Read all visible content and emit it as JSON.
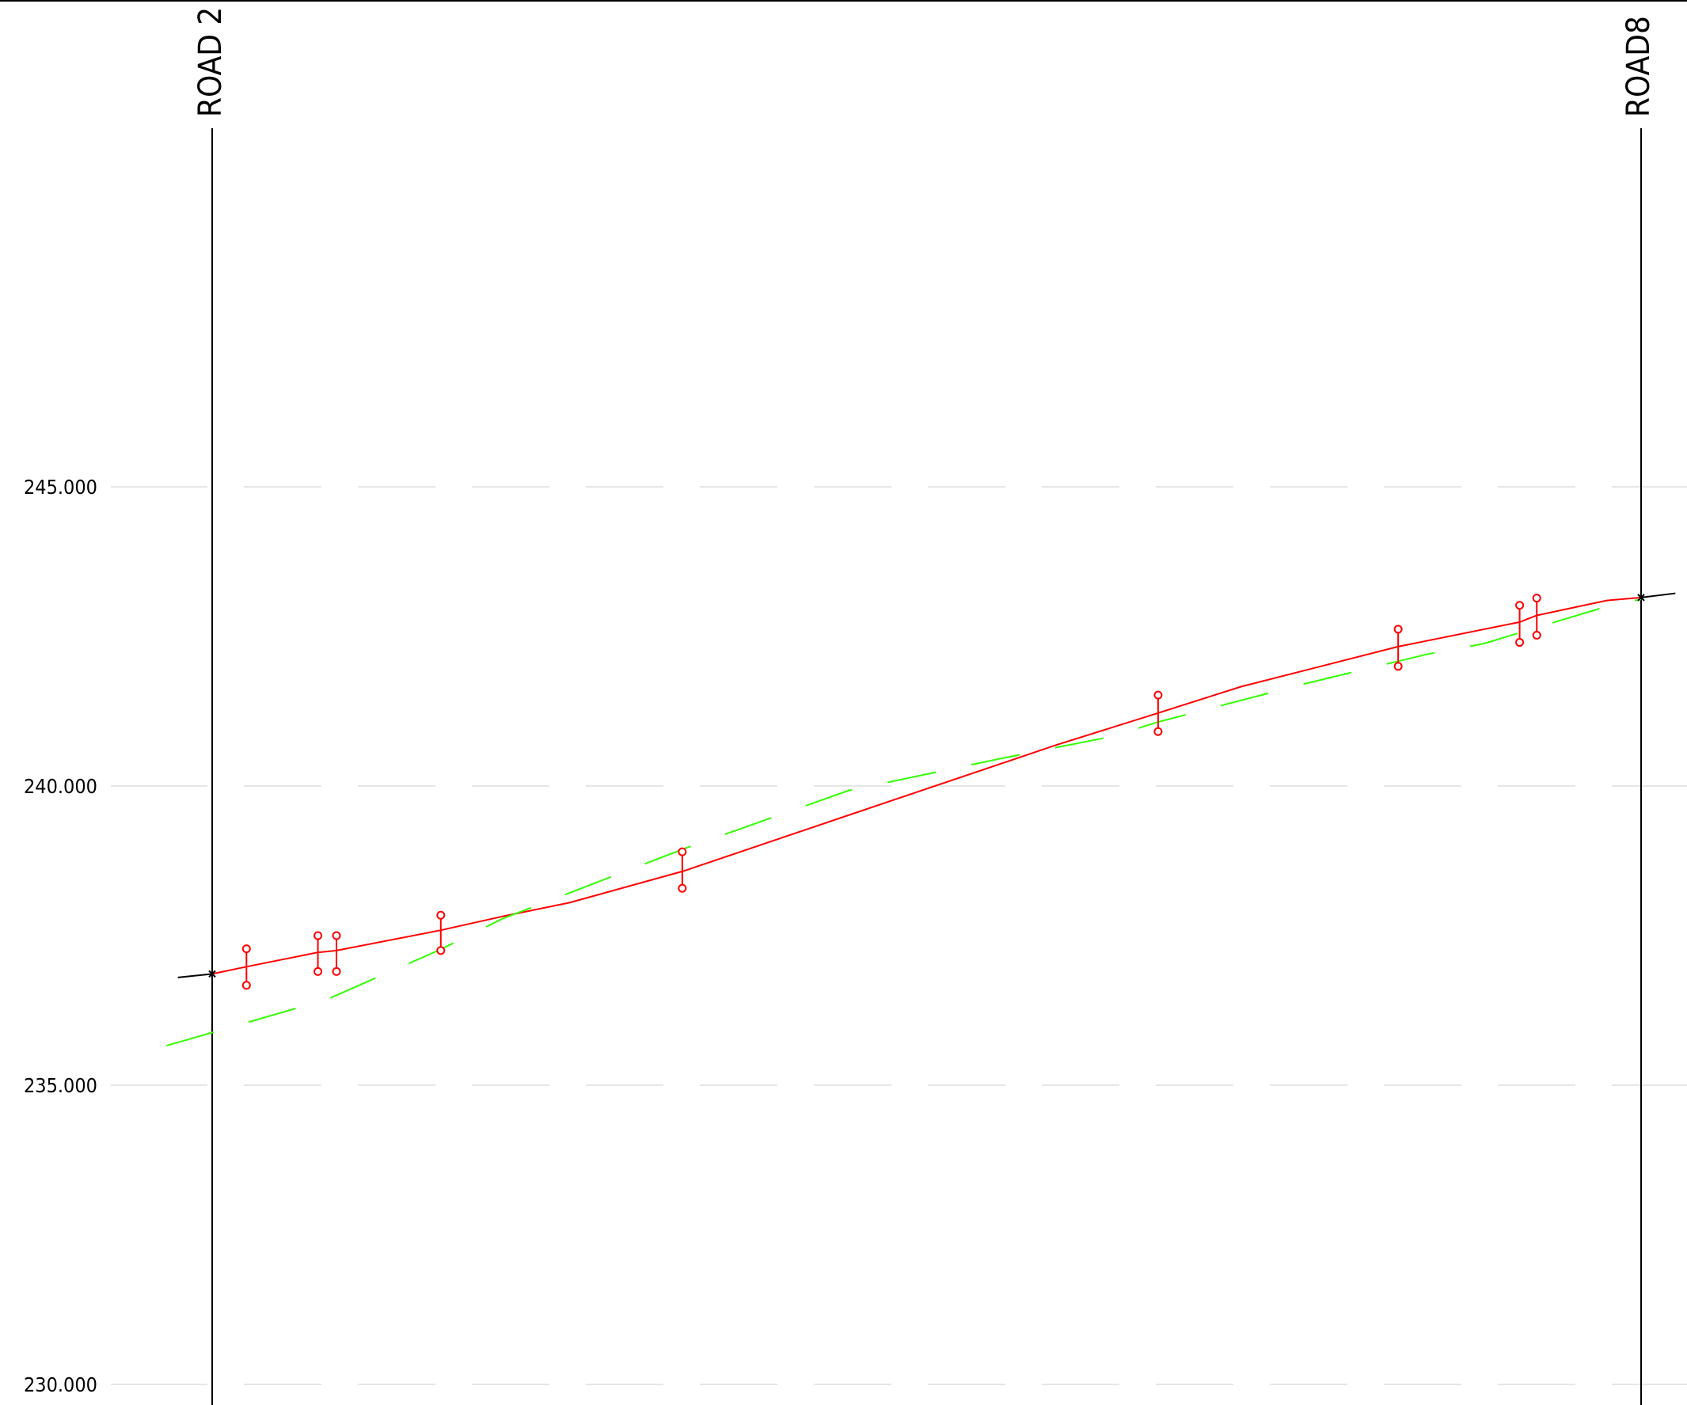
{
  "colors": {
    "background": "#ffffff",
    "gridline": "#e6e6e6",
    "frame": "#000000",
    "design_profile": "#ff0000",
    "ground_profile": "#33ff00",
    "tie_in": "#000000"
  },
  "road_labels": {
    "left": "ROAD 2",
    "right": "ROAD8"
  },
  "elevation_labels": [
    "245.000",
    "240.000",
    "235.000",
    "230.000"
  ],
  "chart_data": {
    "type": "line",
    "ylim": [
      230,
      245
    ],
    "yticks": [
      245,
      240,
      235,
      230
    ],
    "grid": true,
    "series": [
      {
        "key": "design",
        "color": "#ff0000",
        "style": "solid",
        "points": [
          [
            0.0,
            236.86
          ],
          [
            0.024,
            236.98
          ],
          [
            0.074,
            237.22
          ],
          [
            0.087,
            237.25
          ],
          [
            0.16,
            237.59
          ],
          [
            0.203,
            237.82
          ],
          [
            0.25,
            238.05
          ],
          [
            0.33,
            238.58
          ],
          [
            0.45,
            239.55
          ],
          [
            0.59,
            240.68
          ],
          [
            0.662,
            241.22
          ],
          [
            0.72,
            241.66
          ],
          [
            0.83,
            242.33
          ],
          [
            0.915,
            242.74
          ],
          [
            0.927,
            242.85
          ],
          [
            0.976,
            243.1
          ],
          [
            1.0,
            243.15
          ]
        ]
      },
      {
        "key": "ground",
        "color": "#33ff00",
        "style": "dashed",
        "points": [
          [
            -0.032,
            235.66
          ],
          [
            0.0,
            235.88
          ],
          [
            0.08,
            236.43
          ],
          [
            0.16,
            237.27
          ],
          [
            0.203,
            237.78
          ],
          [
            0.33,
            238.95
          ],
          [
            0.445,
            239.92
          ],
          [
            0.55,
            240.45
          ],
          [
            0.63,
            240.83
          ],
          [
            0.662,
            241.07
          ],
          [
            0.765,
            241.71
          ],
          [
            0.815,
            242.0
          ],
          [
            0.85,
            242.2
          ],
          [
            0.89,
            242.38
          ],
          [
            0.93,
            242.67
          ],
          [
            0.976,
            243.0
          ],
          [
            1.0,
            243.12
          ]
        ]
      },
      {
        "key": "tie_in",
        "color": "#000000",
        "style": "solid",
        "segments": [
          [
            [
              -0.024,
              236.8
            ],
            [
              0.0,
              236.86
            ]
          ],
          [
            [
              1.0,
              243.15
            ],
            [
              1.024,
              243.22
            ]
          ]
        ]
      }
    ],
    "markers": [
      {
        "x": 0.024,
        "top": 237.28,
        "bottom": 236.67
      },
      {
        "x": 0.074,
        "top": 237.5,
        "bottom": 236.9
      },
      {
        "x": 0.087,
        "top": 237.5,
        "bottom": 236.9
      },
      {
        "x": 0.16,
        "top": 237.84,
        "bottom": 237.25
      },
      {
        "x": 0.329,
        "top": 238.9,
        "bottom": 238.29
      },
      {
        "x": 0.662,
        "top": 241.52,
        "bottom": 240.91
      },
      {
        "x": 0.83,
        "top": 242.62,
        "bottom": 242.0
      },
      {
        "x": 0.915,
        "top": 243.02,
        "bottom": 242.4
      },
      {
        "x": 0.927,
        "top": 243.14,
        "bottom": 242.52
      }
    ],
    "stations": [
      {
        "x": 0.0,
        "label": "ROAD 2"
      },
      {
        "x": 1.0,
        "label": "ROAD8"
      }
    ]
  }
}
